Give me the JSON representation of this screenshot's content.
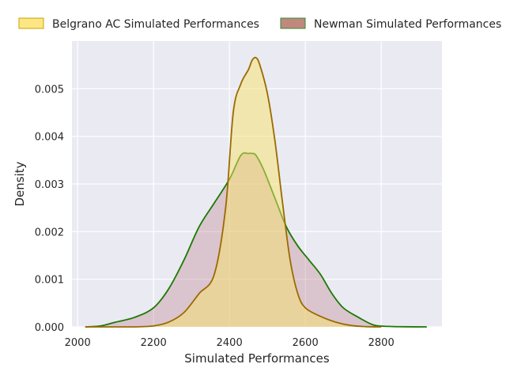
{
  "chart_data": {
    "type": "area",
    "xlabel": "Simulated Performances",
    "ylabel": "Density",
    "xlim": [
      1985,
      2960
    ],
    "ylim": [
      0,
      0.006
    ],
    "xticks": [
      2000,
      2200,
      2400,
      2600,
      2800
    ],
    "yticks": [
      0.0,
      0.001,
      0.002,
      0.003,
      0.004,
      0.005
    ],
    "ytick_labels": [
      "0.000",
      "0.001",
      "0.002",
      "0.003",
      "0.004",
      "0.005"
    ],
    "grid": true,
    "background": "#eaeaf2",
    "legend_position": "top, above plot",
    "series": [
      {
        "name": "Belgrano AC Simulated Performances",
        "fill": "#f7e16a",
        "fill_opacity": 0.5,
        "line": "#9a6a00",
        "legend_fill": "#fde785",
        "legend_edge": "#c9a000",
        "x": [
          2020,
          2150,
          2200,
          2240,
          2280,
          2320,
          2360,
          2390,
          2410,
          2430,
          2450,
          2460,
          2470,
          2480,
          2500,
          2520,
          2540,
          2560,
          2580,
          2600,
          2640,
          2680,
          2720,
          2760,
          2800
        ],
        "y": [
          0.0,
          0.0,
          2e-05,
          0.0001,
          0.0003,
          0.0007,
          0.0011,
          0.0025,
          0.0045,
          0.0051,
          0.0054,
          0.0056,
          0.00565,
          0.0055,
          0.0049,
          0.0039,
          0.0026,
          0.0014,
          0.0007,
          0.0004,
          0.00022,
          0.0001,
          3e-05,
          5e-06,
          0.0
        ]
      },
      {
        "name": "Newman Simulated Performances",
        "fill": "#b56e7a",
        "fill_opacity": 0.3,
        "line": "#1a7a00",
        "legend_fill": "#c0887e",
        "legend_edge": "#2e8b2e",
        "x": [
          2020,
          2060,
          2100,
          2150,
          2200,
          2240,
          2280,
          2320,
          2360,
          2400,
          2430,
          2450,
          2460,
          2470,
          2490,
          2520,
          2550,
          2580,
          2610,
          2640,
          2670,
          2700,
          2740,
          2780,
          2820,
          2860,
          2920
        ],
        "y": [
          0.0,
          2e-05,
          0.0001,
          0.0002,
          0.0004,
          0.0008,
          0.0014,
          0.0021,
          0.0026,
          0.0031,
          0.0036,
          0.00364,
          0.00364,
          0.0036,
          0.0033,
          0.0027,
          0.0021,
          0.0017,
          0.0014,
          0.0011,
          0.0007,
          0.0004,
          0.0002,
          4e-05,
          1e-05,
          3e-06,
          0.0
        ]
      }
    ]
  }
}
